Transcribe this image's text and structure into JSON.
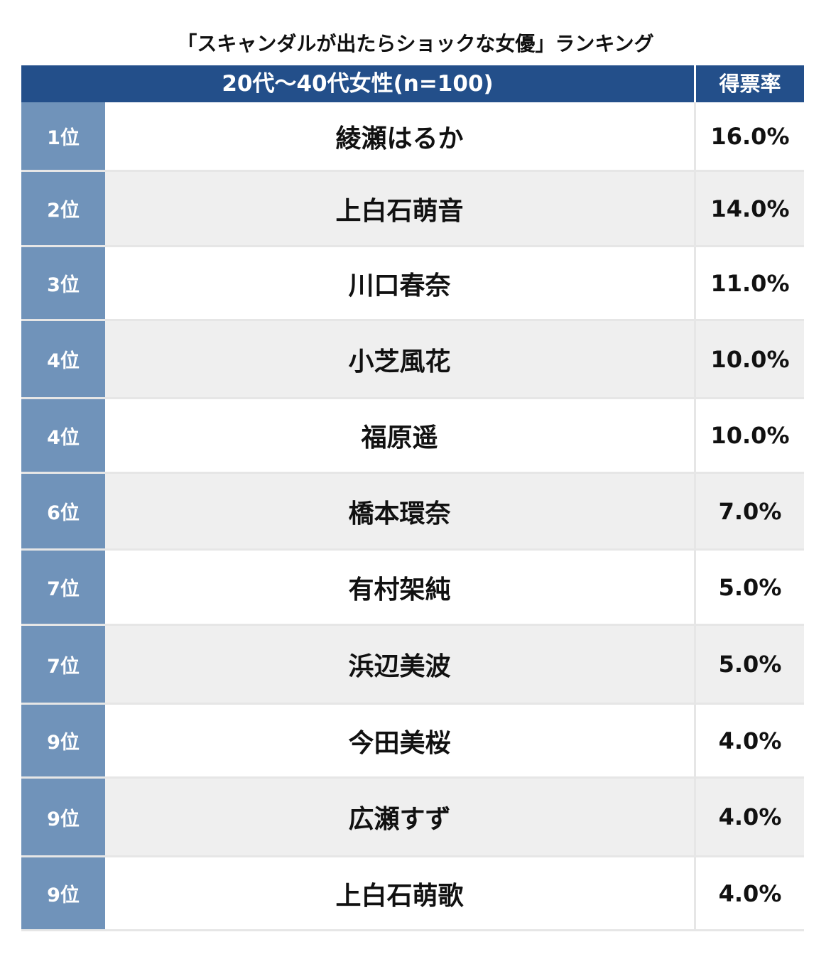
{
  "title": "「スキャンダルが出たらショックな女優」ランキング",
  "header": {
    "group_label": "20代〜40代女性(n=100)",
    "rate_label": "得票率"
  },
  "rows": [
    {
      "rank": "1位",
      "name": "綾瀬はるか",
      "rate": "16.0%"
    },
    {
      "rank": "2位",
      "name": "上白石萌音",
      "rate": "14.0%"
    },
    {
      "rank": "3位",
      "name": "川口春奈",
      "rate": "11.0%"
    },
    {
      "rank": "4位",
      "name": "小芝風花",
      "rate": "10.0%"
    },
    {
      "rank": "4位",
      "name": "福原遥",
      "rate": "10.0%"
    },
    {
      "rank": "6位",
      "name": "橋本環奈",
      "rate": "7.0%"
    },
    {
      "rank": "7位",
      "name": "有村架純",
      "rate": "5.0%"
    },
    {
      "rank": "7位",
      "name": "浜辺美波",
      "rate": "5.0%"
    },
    {
      "rank": "9位",
      "name": "今田美桜",
      "rate": "4.0%"
    },
    {
      "rank": "9位",
      "name": "広瀬すず",
      "rate": "4.0%"
    },
    {
      "rank": "9位",
      "name": "上白石萌歌",
      "rate": "4.0%"
    }
  ],
  "colors": {
    "header_bg": "#234f8a",
    "rank_bg": "#7093ba",
    "alt_row_bg": "#efefef"
  }
}
